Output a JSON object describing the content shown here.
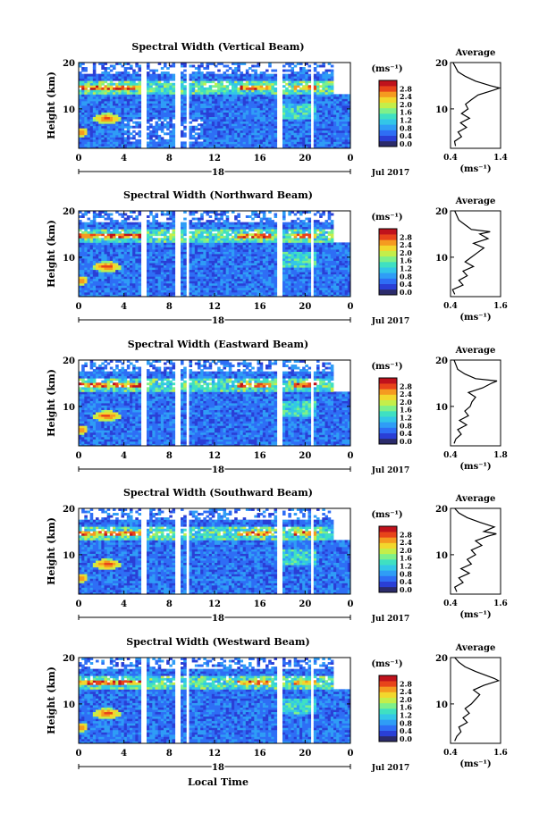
{
  "figure": {
    "xlabel": "Local Time",
    "date_label": "Jul 2017",
    "ylabel": "Height (km)",
    "colorbar_unit": "(ms⁻¹)",
    "colorbar_ticks": [
      "0.0",
      "0.4",
      "0.8",
      "1.2",
      "1.6",
      "2.0",
      "2.4",
      "2.8"
    ],
    "colorbar_colors": [
      "#2b2b6b",
      "#2a3fd6",
      "#2e6ef5",
      "#2f9df6",
      "#33c6e8",
      "#3fe0c2",
      "#7ef08a",
      "#c4ee4a",
      "#f2d72d",
      "#f59a20",
      "#e8441a",
      "#c0121c"
    ],
    "avg_title": "Average",
    "avg_xlabel": "(ms⁻¹)"
  },
  "chart_data": [
    {
      "type": "heatmap",
      "title": "Spectral Width (Vertical Beam)",
      "x_ticks": [
        "0",
        "4",
        "8",
        "12",
        "16",
        "20",
        "0"
      ],
      "day_label": "18",
      "y_ticks": [
        "10",
        "20"
      ],
      "xlim": [
        0,
        24
      ],
      "ylim": [
        1.5,
        20
      ],
      "avg_x_ticks": [
        "0.4",
        "1.4"
      ],
      "avg_xlim": [
        0.4,
        1.4
      ],
      "avg_profile": [
        [
          2,
          0.5
        ],
        [
          3,
          0.48
        ],
        [
          4,
          0.62
        ],
        [
          5,
          0.55
        ],
        [
          6,
          0.72
        ],
        [
          7,
          0.6
        ],
        [
          8,
          0.78
        ],
        [
          9,
          0.62
        ],
        [
          10,
          0.75
        ],
        [
          11,
          0.7
        ],
        [
          12,
          0.82
        ],
        [
          13,
          0.95
        ],
        [
          14,
          1.25
        ],
        [
          14.5,
          1.38
        ],
        [
          15,
          1.2
        ],
        [
          16,
          0.9
        ],
        [
          17,
          0.7
        ],
        [
          18,
          0.55
        ],
        [
          19,
          0.5
        ],
        [
          20,
          0.45
        ]
      ]
    },
    {
      "type": "heatmap",
      "title": "Spectral Width (Northward Beam)",
      "x_ticks": [
        "0",
        "4",
        "8",
        "12",
        "16",
        "20",
        "0"
      ],
      "day_label": "18",
      "y_ticks": [
        "10",
        "20"
      ],
      "xlim": [
        0,
        24
      ],
      "ylim": [
        1.5,
        20
      ],
      "avg_x_ticks": [
        "0.4",
        "1.6"
      ],
      "avg_xlim": [
        0.4,
        1.6
      ],
      "avg_profile": [
        [
          2,
          0.5
        ],
        [
          3,
          0.45
        ],
        [
          4,
          0.7
        ],
        [
          5,
          0.6
        ],
        [
          6,
          0.8
        ],
        [
          7,
          0.7
        ],
        [
          8,
          0.95
        ],
        [
          9,
          0.75
        ],
        [
          10,
          0.9
        ],
        [
          11,
          1.05
        ],
        [
          12,
          1.2
        ],
        [
          13,
          0.95
        ],
        [
          14,
          1.3
        ],
        [
          15,
          1.1
        ],
        [
          15.5,
          1.35
        ],
        [
          16,
          0.9
        ],
        [
          17,
          0.75
        ],
        [
          18,
          0.6
        ],
        [
          19,
          0.55
        ],
        [
          20,
          0.5
        ]
      ]
    },
    {
      "type": "heatmap",
      "title": "Spectral Width (Eastward Beam)",
      "x_ticks": [
        "0",
        "4",
        "8",
        "12",
        "16",
        "20",
        "0"
      ],
      "day_label": "18",
      "y_ticks": [
        "10",
        "20"
      ],
      "xlim": [
        0,
        24
      ],
      "ylim": [
        1.5,
        20
      ],
      "avg_x_ticks": [
        "0.4",
        "1.8"
      ],
      "avg_xlim": [
        0.4,
        1.8
      ],
      "avg_profile": [
        [
          2,
          0.5
        ],
        [
          3,
          0.55
        ],
        [
          4,
          0.7
        ],
        [
          5,
          0.6
        ],
        [
          6,
          0.85
        ],
        [
          7,
          0.65
        ],
        [
          8,
          0.9
        ],
        [
          9,
          0.8
        ],
        [
          10,
          0.95
        ],
        [
          11,
          1.0
        ],
        [
          12,
          1.1
        ],
        [
          13,
          0.9
        ],
        [
          14,
          1.3
        ],
        [
          15,
          1.55
        ],
        [
          15.5,
          1.7
        ],
        [
          16,
          1.1
        ],
        [
          17,
          0.8
        ],
        [
          18,
          0.6
        ],
        [
          19,
          0.55
        ],
        [
          20,
          0.5
        ]
      ]
    },
    {
      "type": "heatmap",
      "title": "Spectral Width (Southward Beam)",
      "x_ticks": [
        "0",
        "4",
        "8",
        "12",
        "16",
        "20",
        "0"
      ],
      "day_label": "18",
      "y_ticks": [
        "10",
        "20"
      ],
      "xlim": [
        0,
        24
      ],
      "ylim": [
        1.5,
        20
      ],
      "avg_x_ticks": [
        "0.4",
        "1.6"
      ],
      "avg_xlim": [
        0.4,
        1.6
      ],
      "avg_profile": [
        [
          2,
          0.55
        ],
        [
          3,
          0.5
        ],
        [
          4,
          0.7
        ],
        [
          5,
          0.6
        ],
        [
          6,
          0.85
        ],
        [
          7,
          0.65
        ],
        [
          8,
          0.9
        ],
        [
          9,
          0.8
        ],
        [
          10,
          1.0
        ],
        [
          11,
          0.9
        ],
        [
          12,
          1.15
        ],
        [
          13,
          1.0
        ],
        [
          14,
          1.3
        ],
        [
          14.5,
          1.5
        ],
        [
          15,
          1.2
        ],
        [
          16,
          1.45
        ],
        [
          17,
          1.1
        ],
        [
          18,
          0.8
        ],
        [
          19,
          0.6
        ],
        [
          20,
          0.5
        ]
      ]
    },
    {
      "type": "heatmap",
      "title": "Spectral Width (Westward Beam)",
      "x_ticks": [
        "0",
        "4",
        "8",
        "12",
        "16",
        "20",
        "0"
      ],
      "day_label": "18",
      "y_ticks": [
        "10",
        "20"
      ],
      "xlim": [
        0,
        24
      ],
      "ylim": [
        1.5,
        20
      ],
      "avg_x_ticks": [
        "0.4",
        "1.6"
      ],
      "avg_xlim": [
        0.4,
        1.6
      ],
      "avg_profile": [
        [
          2,
          0.5
        ],
        [
          3,
          0.55
        ],
        [
          4,
          0.65
        ],
        [
          5,
          0.6
        ],
        [
          6,
          0.8
        ],
        [
          7,
          0.7
        ],
        [
          8,
          0.85
        ],
        [
          9,
          0.75
        ],
        [
          10,
          0.9
        ],
        [
          11,
          1.0
        ],
        [
          12,
          1.1
        ],
        [
          13,
          0.95
        ],
        [
          14,
          1.2
        ],
        [
          15,
          1.55
        ],
        [
          15.5,
          1.45
        ],
        [
          16,
          1.3
        ],
        [
          17,
          1.0
        ],
        [
          18,
          0.75
        ],
        [
          19,
          0.6
        ],
        [
          20,
          0.5
        ]
      ]
    }
  ]
}
